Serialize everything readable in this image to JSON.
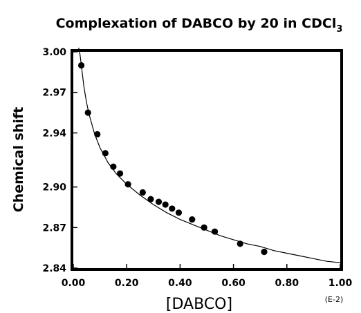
{
  "chart_data": {
    "type": "scatter",
    "title": "Complexation of DABCO by 20 in CDCl",
    "title_subscript": "3",
    "xlabel": "[DABCO]",
    "ylabel": "Chemical shift",
    "x_unit": "(E-2)",
    "xlim": [
      0.0,
      1.0
    ],
    "ylim": [
      2.84,
      3.0
    ],
    "x_ticks": [
      "0.00",
      "0.20",
      "0.40",
      "0.60",
      "0.80",
      "1.00"
    ],
    "y_ticks": [
      "2.84",
      "2.87",
      "2.90",
      "2.94",
      "2.97",
      "3.00"
    ],
    "grid": false,
    "series": [
      {
        "marker": "filled-circle",
        "color": "#000000",
        "points": [
          {
            "x": 0.03,
            "y": 2.99
          },
          {
            "x": 0.055,
            "y": 2.955
          },
          {
            "x": 0.09,
            "y": 2.939
          },
          {
            "x": 0.12,
            "y": 2.925
          },
          {
            "x": 0.15,
            "y": 2.915
          },
          {
            "x": 0.175,
            "y": 2.91
          },
          {
            "x": 0.205,
            "y": 2.902
          },
          {
            "x": 0.26,
            "y": 2.896
          },
          {
            "x": 0.29,
            "y": 2.891
          },
          {
            "x": 0.32,
            "y": 2.889
          },
          {
            "x": 0.345,
            "y": 2.887
          },
          {
            "x": 0.37,
            "y": 2.884
          },
          {
            "x": 0.395,
            "y": 2.881
          },
          {
            "x": 0.445,
            "y": 2.876
          },
          {
            "x": 0.49,
            "y": 2.87
          },
          {
            "x": 0.53,
            "y": 2.867
          },
          {
            "x": 0.625,
            "y": 2.858
          },
          {
            "x": 0.715,
            "y": 2.852
          }
        ]
      }
    ],
    "fit_curve": {
      "type": "line",
      "color": "#000000",
      "x": [
        0.02,
        0.025,
        0.03,
        0.04,
        0.05,
        0.06,
        0.08,
        0.1,
        0.13,
        0.16,
        0.2,
        0.25,
        0.3,
        0.35,
        0.4,
        0.45,
        0.5,
        0.55,
        0.6,
        0.65,
        0.7,
        0.75,
        0.8,
        0.85,
        0.9,
        0.95,
        1.0
      ],
      "y": [
        3.006,
        2.998,
        2.99,
        2.974,
        2.962,
        2.953,
        2.939,
        2.929,
        2.918,
        2.91,
        2.902,
        2.894,
        2.887,
        2.881,
        2.876,
        2.872,
        2.868,
        2.864,
        2.861,
        2.858,
        2.856,
        2.853,
        2.851,
        2.849,
        2.847,
        2.845,
        2.844
      ]
    }
  }
}
